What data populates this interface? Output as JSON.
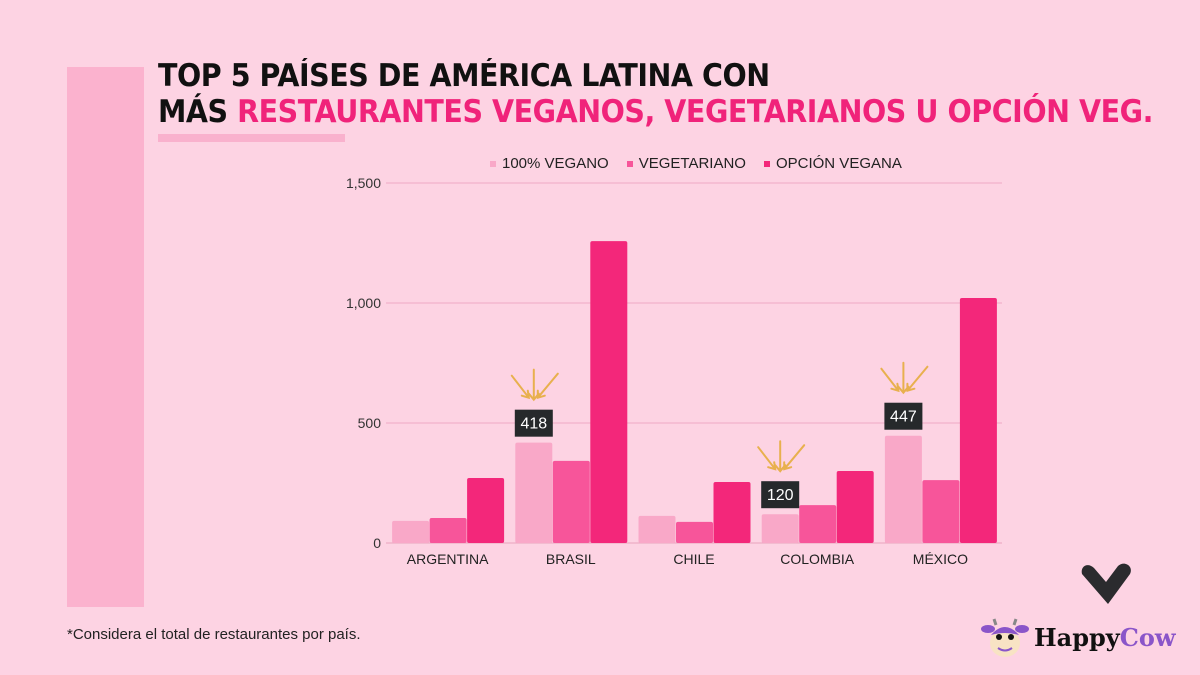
{
  "title": {
    "line1": "TOP 5 PAÍSES DE AMÉRICA LATINA CON",
    "line2_prefix": "MÁS ",
    "line2_accent": "RESTAURANTES VEGANOS, VEGETARIANOS U OPCIÓN VEG."
  },
  "footnote": "*Considera el total de restaurantes por país.",
  "logo": {
    "word1": "Happy",
    "word2": "Cow",
    "icon": "happycow-cow-icon",
    "heart_icon": "heart-icon"
  },
  "colors": {
    "vegano": "#f9a8c8",
    "vegetariano": "#f7559a",
    "opcion": "#f3277a",
    "annotation_bg": "#26292b",
    "arrow": "#e8b04e",
    "accent": "#f0237a"
  },
  "chart_data": {
    "type": "bar",
    "title": "TOP 5 PAÍSES DE AMÉRICA LATINA CON MÁS RESTAURANTES VEGANOS, VEGETARIANOS U OPCIÓN VEG.",
    "xlabel": "",
    "ylabel": "",
    "categories": [
      "ARGENTINA",
      "BRASIL",
      "CHILE",
      "COLOMBIA",
      "MÉXICO"
    ],
    "series": [
      {
        "name": "100% VEGANO",
        "color": "#f9a8c8",
        "values": [
          92,
          418,
          113,
          120,
          447
        ]
      },
      {
        "name": "VEGETARIANO",
        "color": "#f7559a",
        "values": [
          104,
          342,
          88,
          158,
          262
        ]
      },
      {
        "name": "OPCIÓN VEGANA",
        "color": "#f3277a",
        "values": [
          271,
          1258,
          254,
          300,
          1021
        ]
      }
    ],
    "ylim": [
      0,
      1500
    ],
    "yticks": [
      0,
      500,
      1000,
      1500
    ],
    "ytick_labels": [
      "0",
      "500",
      "1,000",
      "1,500"
    ],
    "grid": true,
    "legend": "top",
    "annotations": [
      {
        "category": "BRASIL",
        "series": "100% VEGANO",
        "label": "418"
      },
      {
        "category": "COLOMBIA",
        "series": "100% VEGANO",
        "label": "120"
      },
      {
        "category": "MÉXICO",
        "series": "100% VEGANO",
        "label": "447"
      }
    ]
  }
}
